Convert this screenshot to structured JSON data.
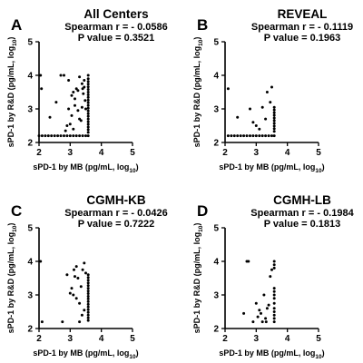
{
  "chart_data": [
    {
      "type": "scatter",
      "letter": "A",
      "title": "All Centers",
      "stat_line1": "Spearman r = - 0.0586",
      "stat_line2": "P value = 0.3521",
      "xlabel": "sPD-1 by MB (pg/mL, log",
      "xlabel_sub": "10",
      "xlabel_end": ")",
      "ylabel": "sPD-1 by R&D (pg/mL, log",
      "ylabel_sub": "10",
      "ylabel_end": ")",
      "xlim": [
        2,
        5
      ],
      "ylim": [
        2,
        5
      ],
      "xticks": [
        "2",
        "3",
        "4",
        "5"
      ],
      "yticks": [
        "2",
        "3",
        "4",
        "5"
      ],
      "grid": false,
      "points": [
        [
          2.05,
          4.0
        ],
        [
          2.08,
          3.6
        ],
        [
          2.35,
          2.75
        ],
        [
          2.55,
          3.2
        ],
        [
          2.7,
          4.0
        ],
        [
          2.8,
          4.0
        ],
        [
          2.9,
          2.5
        ],
        [
          2.95,
          3.0
        ],
        [
          3.05,
          2.8
        ],
        [
          3.1,
          2.4
        ],
        [
          3.15,
          3.1
        ],
        [
          3.2,
          3.6
        ],
        [
          3.25,
          3.55
        ],
        [
          3.3,
          3.95
        ],
        [
          3.1,
          3.5
        ],
        [
          3.35,
          2.65
        ],
        [
          3.4,
          3.6
        ],
        [
          3.45,
          3.85
        ],
        [
          3.48,
          3.25
        ],
        [
          3.5,
          3.0
        ],
        [
          3.3,
          2.7
        ],
        [
          3.05,
          3.4
        ],
        [
          2.95,
          3.85
        ],
        [
          3.15,
          3.3
        ],
        [
          3.38,
          3.05
        ],
        [
          3.42,
          3.45
        ],
        [
          2.85,
          2.35
        ],
        [
          3.0,
          2.55
        ],
        [
          3.25,
          2.95
        ],
        [
          3.45,
          3.65
        ],
        [
          3.38,
          3.75
        ],
        [
          3.58,
          4.0
        ],
        [
          3.58,
          3.9
        ],
        [
          3.58,
          3.82
        ],
        [
          3.58,
          3.74
        ],
        [
          3.58,
          3.66
        ],
        [
          3.58,
          3.58
        ],
        [
          3.58,
          3.5
        ],
        [
          3.58,
          3.42
        ],
        [
          3.58,
          3.34
        ],
        [
          3.58,
          3.26
        ],
        [
          3.58,
          3.18
        ],
        [
          3.58,
          3.1
        ],
        [
          3.58,
          3.02
        ],
        [
          3.58,
          2.94
        ],
        [
          3.58,
          2.86
        ],
        [
          3.58,
          2.78
        ],
        [
          3.58,
          2.7
        ],
        [
          3.58,
          2.62
        ],
        [
          3.58,
          2.54
        ],
        [
          3.58,
          2.46
        ],
        [
          3.58,
          2.38
        ],
        [
          3.58,
          2.3
        ],
        [
          2.0,
          2.2
        ],
        [
          2.1,
          2.2
        ],
        [
          2.2,
          2.2
        ],
        [
          2.3,
          2.2
        ],
        [
          2.4,
          2.2
        ],
        [
          2.5,
          2.2
        ],
        [
          2.6,
          2.2
        ],
        [
          2.7,
          2.2
        ],
        [
          2.8,
          2.2
        ],
        [
          2.9,
          2.2
        ],
        [
          3.0,
          2.2
        ],
        [
          3.1,
          2.2
        ],
        [
          3.2,
          2.2
        ],
        [
          3.3,
          2.2
        ],
        [
          3.4,
          2.2
        ],
        [
          3.5,
          2.2
        ],
        [
          3.58,
          2.2
        ]
      ]
    },
    {
      "type": "scatter",
      "letter": "B",
      "title": "REVEAL",
      "stat_line1": "Spearman r = - 0.1119",
      "stat_line2": "P value = 0.1963",
      "xlabel": "sPD-1 by MB (pg/mL, log",
      "xlabel_sub": "10",
      "xlabel_end": ")",
      "ylabel": "sPD-1 by R&D (pg/mL, log",
      "ylabel_sub": "10",
      "ylabel_end": ")",
      "xlim": [
        2,
        5
      ],
      "ylim": [
        2,
        5
      ],
      "xticks": [
        "2",
        "3",
        "4",
        "5"
      ],
      "yticks": [
        "2",
        "3",
        "4",
        "5"
      ],
      "grid": false,
      "points": [
        [
          2.1,
          3.6
        ],
        [
          2.4,
          2.75
        ],
        [
          2.8,
          3.0
        ],
        [
          3.0,
          2.5
        ],
        [
          3.2,
          3.05
        ],
        [
          3.35,
          3.5
        ],
        [
          3.5,
          3.65
        ],
        [
          3.3,
          2.7
        ],
        [
          3.1,
          2.4
        ],
        [
          2.9,
          2.6
        ],
        [
          3.45,
          3.2
        ],
        [
          3.58,
          3.05
        ],
        [
          3.58,
          2.97
        ],
        [
          3.58,
          2.89
        ],
        [
          3.58,
          2.81
        ],
        [
          3.58,
          2.73
        ],
        [
          3.58,
          2.65
        ],
        [
          3.58,
          2.57
        ],
        [
          3.58,
          2.49
        ],
        [
          3.58,
          2.41
        ],
        [
          3.58,
          2.33
        ],
        [
          2.1,
          2.2
        ],
        [
          2.2,
          2.2
        ],
        [
          2.3,
          2.2
        ],
        [
          2.4,
          2.2
        ],
        [
          2.5,
          2.2
        ],
        [
          2.6,
          2.2
        ],
        [
          2.7,
          2.2
        ],
        [
          2.8,
          2.2
        ],
        [
          2.9,
          2.2
        ],
        [
          3.0,
          2.2
        ],
        [
          3.1,
          2.2
        ],
        [
          3.2,
          2.2
        ],
        [
          3.3,
          2.2
        ],
        [
          3.4,
          2.2
        ],
        [
          3.5,
          2.2
        ],
        [
          3.58,
          2.2
        ]
      ]
    },
    {
      "type": "scatter",
      "letter": "C",
      "title": "CGMH-KB",
      "stat_line1": "Spearman r = - 0.0426",
      "stat_line2": "P value = 0.7222",
      "xlabel": "sPD-1 by MB (pg/mL, log",
      "xlabel_sub": "10",
      "xlabel_end": ")",
      "ylabel": "sPD-1 by R&D (pg/mL, log",
      "ylabel_sub": "10",
      "ylabel_end": ")",
      "xlim": [
        2,
        5
      ],
      "ylim": [
        2,
        5
      ],
      "xticks": [
        "2",
        "3",
        "4",
        "5"
      ],
      "yticks": [
        "2",
        "3",
        "4",
        "5"
      ],
      "grid": false,
      "points": [
        [
          2.05,
          4.0
        ],
        [
          2.1,
          2.2
        ],
        [
          2.75,
          2.2
        ],
        [
          2.9,
          3.6
        ],
        [
          3.0,
          3.05
        ],
        [
          3.05,
          3.2
        ],
        [
          3.1,
          3.0
        ],
        [
          3.15,
          3.55
        ],
        [
          3.2,
          3.85
        ],
        [
          3.25,
          3.5
        ],
        [
          3.3,
          2.75
        ],
        [
          3.3,
          2.2
        ],
        [
          3.35,
          3.25
        ],
        [
          3.4,
          3.75
        ],
        [
          3.45,
          3.95
        ],
        [
          3.5,
          3.65
        ],
        [
          3.12,
          3.75
        ],
        [
          3.45,
          2.55
        ],
        [
          3.38,
          2.4
        ],
        [
          3.2,
          2.9
        ],
        [
          3.58,
          3.6
        ],
        [
          3.58,
          3.52
        ],
        [
          3.58,
          3.44
        ],
        [
          3.58,
          3.36
        ],
        [
          3.58,
          3.28
        ],
        [
          3.58,
          3.2
        ],
        [
          3.58,
          3.12
        ],
        [
          3.58,
          3.04
        ],
        [
          3.58,
          2.96
        ],
        [
          3.58,
          2.88
        ],
        [
          3.58,
          2.8
        ],
        [
          3.58,
          2.72
        ],
        [
          3.58,
          2.64
        ],
        [
          3.58,
          2.56
        ],
        [
          3.58,
          2.48
        ],
        [
          3.58,
          2.4
        ],
        [
          3.58,
          2.32
        ],
        [
          3.58,
          2.24
        ]
      ]
    },
    {
      "type": "scatter",
      "letter": "D",
      "title": "CGMH-LB",
      "stat_line1": "Spearman r = - 0.1984",
      "stat_line2": "P value = 0.1813",
      "xlabel": "sPD-1 by MB (pg/mL, log",
      "xlabel_sub": "10",
      "xlabel_end": ")",
      "ylabel": "sPD-1 by R&D (pg/mL, log",
      "ylabel_sub": "10",
      "ylabel_end": ")",
      "xlim": [
        2,
        5
      ],
      "ylim": [
        2,
        5
      ],
      "xticks": [
        "2",
        "3",
        "4",
        "5"
      ],
      "yticks": [
        "2",
        "3",
        "4",
        "5"
      ],
      "grid": false,
      "points": [
        [
          2.6,
          2.45
        ],
        [
          2.7,
          4.0
        ],
        [
          2.75,
          4.0
        ],
        [
          2.9,
          2.2
        ],
        [
          3.0,
          2.75
        ],
        [
          3.05,
          2.35
        ],
        [
          3.1,
          2.55
        ],
        [
          3.15,
          2.45
        ],
        [
          3.2,
          2.2
        ],
        [
          3.25,
          3.0
        ],
        [
          3.3,
          2.3
        ],
        [
          3.35,
          2.6
        ],
        [
          3.4,
          2.7
        ],
        [
          3.45,
          3.55
        ],
        [
          3.5,
          3.75
        ],
        [
          3.32,
          2.2
        ],
        [
          3.58,
          4.0
        ],
        [
          3.58,
          3.9
        ],
        [
          3.58,
          3.8
        ],
        [
          3.58,
          3.2
        ],
        [
          3.58,
          3.1
        ],
        [
          3.58,
          3.0
        ],
        [
          3.58,
          2.9
        ],
        [
          3.58,
          2.75
        ],
        [
          3.58,
          2.6
        ],
        [
          3.58,
          2.5
        ],
        [
          3.58,
          2.4
        ],
        [
          3.58,
          2.3
        ],
        [
          3.58,
          2.2
        ]
      ]
    }
  ]
}
